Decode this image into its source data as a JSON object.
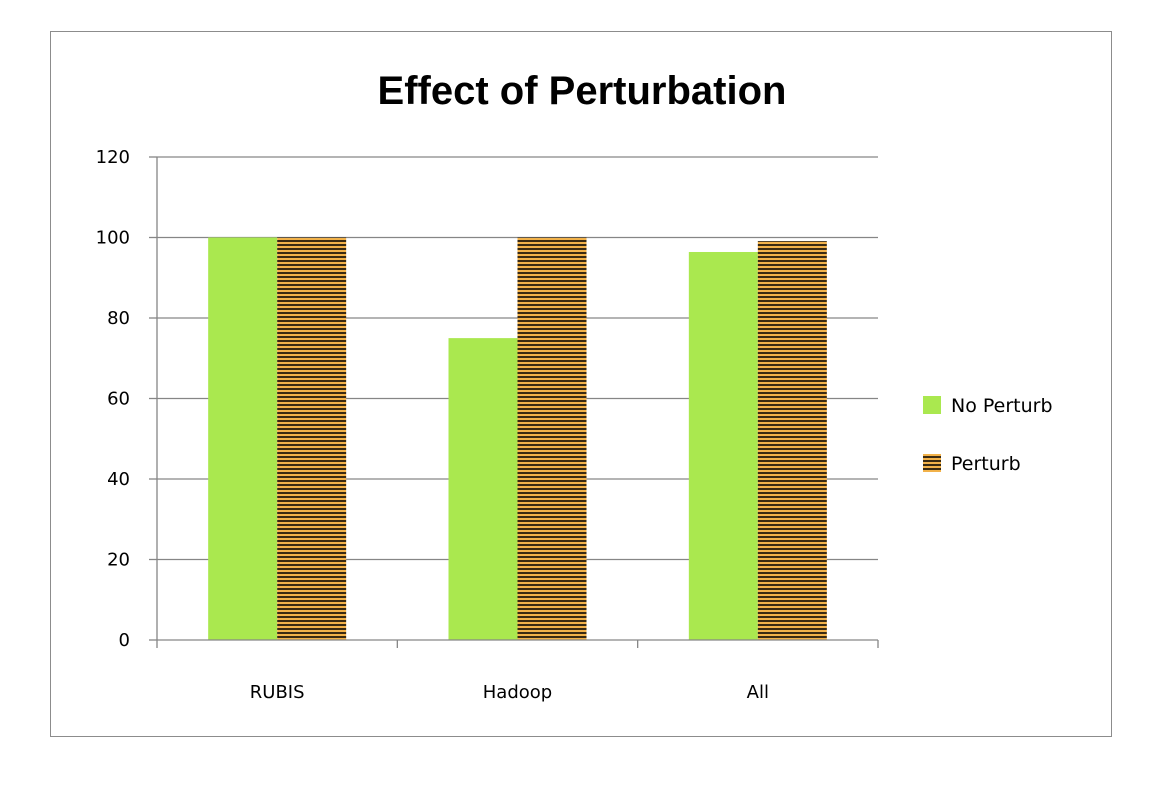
{
  "chart_data": {
    "type": "bar",
    "title": "Effect of Perturbation",
    "xlabel": "",
    "ylabel": "",
    "categories": [
      "RUBIS",
      "Hadoop",
      "All"
    ],
    "series": [
      {
        "name": "No Perturb",
        "values": [
          100,
          75,
          96.4
        ],
        "color": "#aae84f",
        "pattern": "solid"
      },
      {
        "name": "Perturb",
        "values": [
          100,
          100,
          99.1
        ],
        "color": "#f2b24a",
        "stripe_color": "#3a2a12",
        "pattern": "horizontal-stripes"
      }
    ],
    "ylim": [
      0,
      120
    ],
    "yticks": [
      0,
      20,
      40,
      60,
      80,
      100,
      120
    ],
    "grid": true,
    "legend_position": "right"
  }
}
